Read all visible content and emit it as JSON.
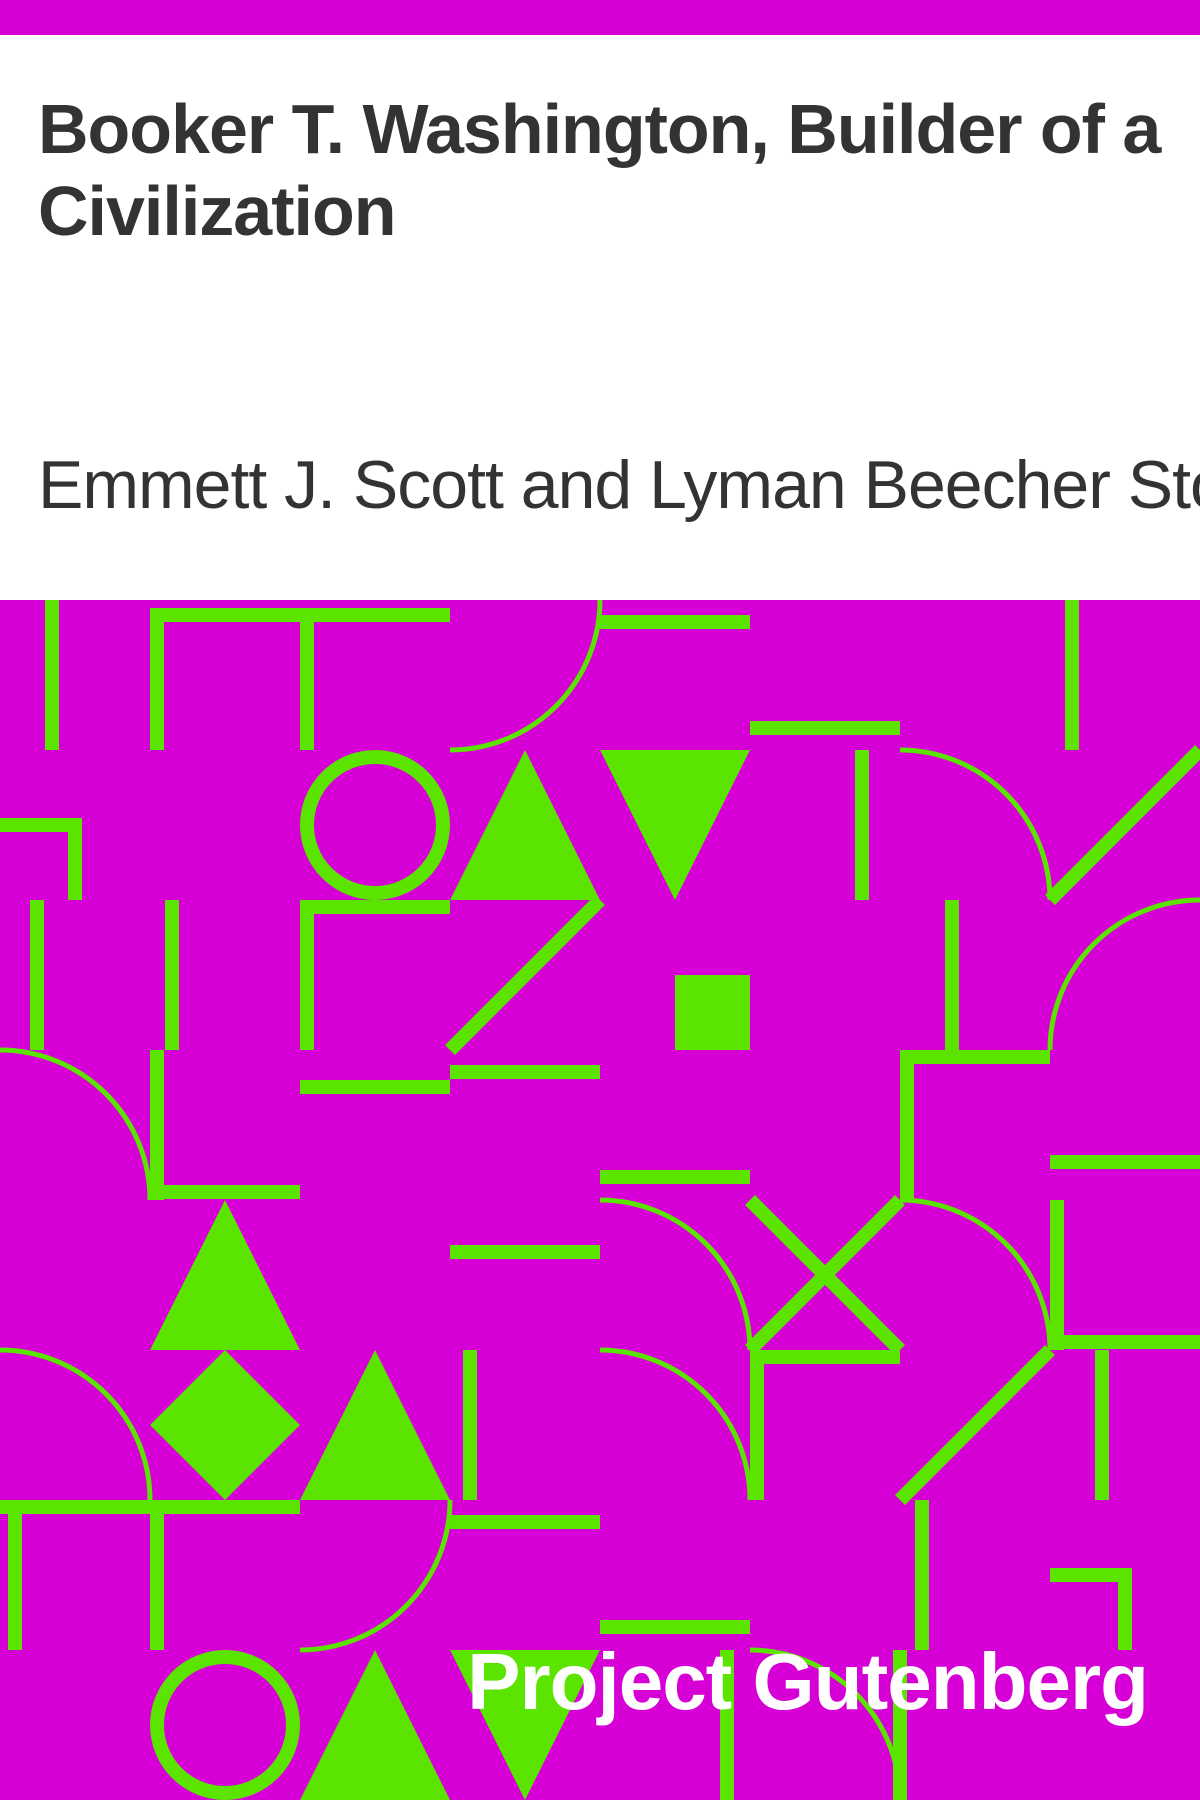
{
  "cover": {
    "title": "Booker T. Washington, Builder of a Civilization",
    "author": "Emmett J. Scott and Lyman Beecher Stowe",
    "brand": "Project Gutenberg",
    "colors": {
      "frame": "#d600d6",
      "pattern_background": "#d600d6",
      "pattern_shapes": "#5be400",
      "text": "#333333",
      "brand_text": "#ffffff"
    }
  }
}
